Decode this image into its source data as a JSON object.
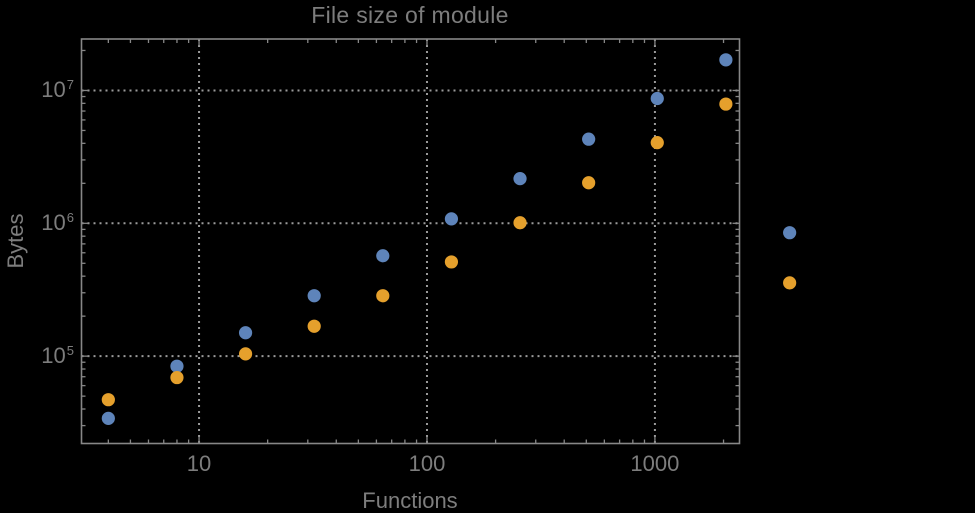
{
  "title": "File size of module",
  "colors": {
    "background": "#000000",
    "frame": "#878787",
    "grid": "#9b9b9b",
    "text": "#7d7d7d",
    "series_blue": "#5E84BA",
    "series_orange": "#E5A02C"
  },
  "chart_data": {
    "type": "scatter",
    "title": "File size of module",
    "xlabel": "Functions",
    "ylabel": "Bytes",
    "xscale": "log",
    "yscale": "log",
    "xlim": [
      3.05,
      2350
    ],
    "ylim": [
      22000,
      24400000
    ],
    "xticks": [
      10,
      100,
      1000
    ],
    "yticks": [
      100000,
      1000000,
      10000000
    ],
    "grid": "dotted-major",
    "legend_position": "none",
    "x": [
      4,
      8,
      16,
      32,
      64,
      128,
      256,
      512,
      1024,
      2048,
      3900
    ],
    "series": [
      {
        "name": "blue",
        "color": "#5E84BA",
        "values": [
          34000,
          84000,
          150000,
          285000,
          570000,
          1080000,
          2170000,
          4300000,
          8700000,
          17000000,
          850000
        ]
      },
      {
        "name": "orange",
        "color": "#E5A02C",
        "values": [
          47000,
          69000,
          104000,
          168000,
          285000,
          512000,
          1010000,
          2020000,
          4050000,
          7900000,
          356000
        ]
      }
    ]
  }
}
